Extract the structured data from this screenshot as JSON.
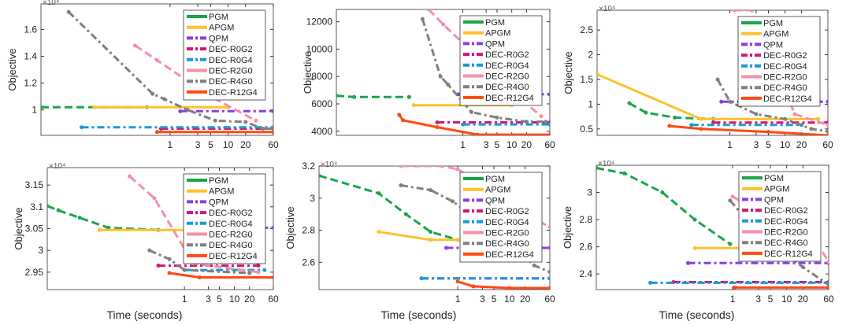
{
  "chart_data": {
    "type": "line",
    "x_scale": "log",
    "grid": false,
    "legend_placement": "top-right",
    "legend": [
      "PGM",
      "APGM",
      "QPM",
      "DEC-R0G2",
      "DEC-R0G4",
      "DEC-R2G0",
      "DEC-R4G0",
      "DEC-R12G4"
    ],
    "colors": {
      "PGM": "#1aa64a",
      "APGM": "#fdc12c",
      "QPM": "#8a3ee0",
      "DEC-R0G2": "#d4147a",
      "DEC-R0G4": "#1a9ad6",
      "DEC-R2G0": "#f78fa7",
      "DEC-R4G0": "#7f7f7f",
      "DEC-R12G4": "#ff4a12"
    },
    "panels": [
      {
        "ylabel": "Objective",
        "xlabel": "",
        "y_exponent": "×10⁴",
        "xlim": [
          0.006,
          60
        ],
        "ylim": [
          8100,
          17900
        ],
        "yticks": [
          10000,
          12000,
          14000,
          16000
        ],
        "ytick_labels": [
          "1",
          "1.2",
          "1.4",
          "1.6"
        ],
        "xticks": [
          1,
          3,
          5,
          10,
          20,
          60
        ],
        "xtick_labels": [
          "1",
          "3",
          "5",
          "10",
          "20",
          "60"
        ],
        "series": [
          {
            "name": "PGM",
            "x": [
              0.006,
              0.4
            ],
            "y": [
              10200,
              10200
            ]
          },
          {
            "name": "APGM",
            "x": [
              0.05,
              10
            ],
            "y": [
              10200,
              10200
            ]
          },
          {
            "name": "QPM",
            "x": [
              1.5,
              60
            ],
            "y": [
              9900,
              9900
            ]
          },
          {
            "name": "DEC-R0G2",
            "x": [
              0.7,
              60
            ],
            "y": [
              8600,
              8600
            ]
          },
          {
            "name": "DEC-R0G4",
            "x": [
              0.03,
              60
            ],
            "y": [
              8700,
              8700
            ]
          },
          {
            "name": "DEC-R2G0",
            "x": [
              0.25,
              0.6,
              5,
              30
            ],
            "y": [
              14800,
              13700,
              11000,
              9200
            ]
          },
          {
            "name": "DEC-R4G0",
            "x": [
              0.018,
              0.5,
              0.8,
              2,
              6,
              20,
              40,
              60
            ],
            "y": [
              17300,
              11200,
              10800,
              10000,
              9200,
              9100,
              8600,
              8600
            ]
          },
          {
            "name": "DEC-R12G4",
            "x": [
              0.6,
              60
            ],
            "y": [
              8350,
              8350
            ]
          }
        ]
      },
      {
        "ylabel": "Objective",
        "xlabel": "",
        "y_exponent": "",
        "xlim": [
          0.0026,
          60
        ],
        "ylim": [
          3700,
          12900
        ],
        "yticks": [
          4000,
          6000,
          8000,
          10000,
          12000
        ],
        "ytick_labels": [
          "4000",
          "6000",
          "8000",
          "10000",
          "12000"
        ],
        "xticks": [
          1,
          3,
          5,
          10,
          20,
          60
        ],
        "xtick_labels": [
          "1",
          "3",
          "5",
          "10",
          "20",
          "60"
        ],
        "series": [
          {
            "name": "PGM",
            "x": [
              0.0026,
              0.006,
              0.08
            ],
            "y": [
              6600,
              6500,
              6500
            ]
          },
          {
            "name": "APGM",
            "x": [
              0.1,
              10
            ],
            "y": [
              5900,
              5900
            ]
          },
          {
            "name": "QPM",
            "x": [
              0.8,
              60
            ],
            "y": [
              6700,
              6700
            ]
          },
          {
            "name": "DEC-R0G2",
            "x": [
              0.3,
              60
            ],
            "y": [
              4650,
              4650
            ]
          },
          {
            "name": "DEC-R0G4",
            "x": [
              1,
              60
            ],
            "y": [
              4500,
              4500
            ]
          },
          {
            "name": "DEC-R2G0",
            "x": [
              0.2,
              0.4,
              20,
              40
            ],
            "y": [
              12900,
              11800,
              6000,
              5100
            ]
          },
          {
            "name": "DEC-R4G0",
            "x": [
              0.15,
              0.35,
              0.5,
              1.5,
              5,
              20,
              50
            ],
            "y": [
              12200,
              8000,
              7400,
              5400,
              5000,
              4700,
              4700
            ]
          },
          {
            "name": "DEC-R12G4",
            "x": [
              0.05,
              0.06,
              0.3,
              2,
              60
            ],
            "y": [
              5200,
              4800,
              4300,
              3750,
              3750
            ]
          }
        ]
      },
      {
        "ylabel": "Objective",
        "xlabel": "",
        "y_exponent": "×10⁴",
        "xlim": [
          0.0039,
          60
        ],
        "ylim": [
          3700,
          29000
        ],
        "yticks": [
          5000,
          10000,
          15000,
          20000,
          25000
        ],
        "ytick_labels": [
          "0.5",
          "1",
          "1.5",
          "2",
          "2.5"
        ],
        "xticks": [
          1,
          3,
          5,
          10,
          20,
          60
        ],
        "xtick_labels": [
          "1",
          "3",
          "5",
          "10",
          "20",
          "60"
        ],
        "series": [
          {
            "name": "PGM",
            "x": [
              0.015,
              0.03,
              0.1,
              0.5
            ],
            "y": [
              10200,
              8300,
              7300,
              7000
            ]
          },
          {
            "name": "APGM",
            "x": [
              0.004,
              0.3,
              40
            ],
            "y": [
              16000,
              7000,
              7000
            ]
          },
          {
            "name": "QPM",
            "x": [
              0.7,
              60
            ],
            "y": [
              10500,
              10500
            ]
          },
          {
            "name": "DEC-R0G2",
            "x": [
              0.5,
              60
            ],
            "y": [
              6300,
              6300
            ]
          },
          {
            "name": "DEC-R0G4",
            "x": [
              0.2,
              20
            ],
            "y": [
              5800,
              5800
            ]
          },
          {
            "name": "DEC-R2G0",
            "x": [
              1.2,
              2.5,
              15,
              60
            ],
            "y": [
              29000,
              29000,
              8000,
              5800
            ]
          },
          {
            "name": "DEC-R4G0",
            "x": [
              0.6,
              1,
              3,
              10,
              30,
              60
            ],
            "y": [
              15000,
              10500,
              8000,
              7000,
              5000,
              4500
            ]
          },
          {
            "name": "DEC-R12G4",
            "x": [
              0.08,
              0.3,
              5,
              60
            ],
            "y": [
              5600,
              5000,
              4400,
              3700
            ]
          }
        ]
      },
      {
        "ylabel": "Objective",
        "xlabel": "Time (seconds)",
        "y_exponent": "×10⁴",
        "xlim": [
          0.0018,
          60
        ],
        "ylim": [
          29100,
          31900
        ],
        "yticks": [
          29500,
          30000,
          30500,
          31000,
          31500
        ],
        "ytick_labels": [
          "2.95",
          "3",
          "3.05",
          "3.1",
          "3.15"
        ],
        "xticks": [
          1,
          3,
          5,
          10,
          20,
          60
        ],
        "xtick_labels": [
          "1",
          "3",
          "5",
          "10",
          "20",
          "60"
        ],
        "series": [
          {
            "name": "PGM",
            "x": [
              0.0018,
              0.003,
              0.008,
              0.03,
              0.3
            ],
            "y": [
              31020,
              30920,
              30750,
              30520,
              30470
            ]
          },
          {
            "name": "APGM",
            "x": [
              0.02,
              2
            ],
            "y": [
              30470,
              30470
            ]
          },
          {
            "name": "QPM",
            "x": [
              3,
              60
            ],
            "y": [
              30520,
              30520
            ]
          },
          {
            "name": "DEC-R0G2",
            "x": [
              0.3,
              30
            ],
            "y": [
              29650,
              29650
            ]
          },
          {
            "name": "DEC-R0G4",
            "x": [
              1,
              40
            ],
            "y": [
              29550,
              29550
            ]
          },
          {
            "name": "DEC-R2G0",
            "x": [
              0.08,
              0.25,
              1.5,
              30
            ],
            "y": [
              31700,
              31200,
              29700,
              29500
            ]
          },
          {
            "name": "DEC-R4G0",
            "x": [
              0.2,
              0.5,
              1,
              20
            ],
            "y": [
              30000,
              29800,
              29550,
              29480
            ]
          },
          {
            "name": "DEC-R12G4",
            "x": [
              0.5,
              2,
              60
            ],
            "y": [
              29480,
              29380,
              29380
            ]
          }
        ]
      },
      {
        "ylabel": "Objective",
        "xlabel": "Time (seconds)",
        "y_exponent": "×10⁴",
        "xlim": [
          0.0021,
          60
        ],
        "ylim": [
          24300,
          32000
        ],
        "yticks": [
          26000,
          28000,
          30000,
          32000
        ],
        "ytick_labels": [
          "2.6",
          "2.8",
          "3",
          "3.2"
        ],
        "xticks": [
          1,
          3,
          5,
          10,
          20,
          60
        ],
        "xtick_labels": [
          "1",
          "3",
          "5",
          "10",
          "20",
          "60"
        ],
        "series": [
          {
            "name": "PGM",
            "x": [
              0.0021,
              0.03,
              0.1,
              0.3,
              1
            ],
            "y": [
              31400,
              30300,
              29000,
              27900,
              27400
            ]
          },
          {
            "name": "APGM",
            "x": [
              0.03,
              0.3,
              1
            ],
            "y": [
              27900,
              27400,
              27400
            ]
          },
          {
            "name": "QPM",
            "x": [
              0.6,
              60
            ],
            "y": [
              26900,
              26900
            ]
          },
          {
            "name": "DEC-R0G2",
            "x": [
              0.2,
              60
            ],
            "y": [
              25000,
              25000
            ]
          },
          {
            "name": "DEC-R0G4",
            "x": [
              0.2,
              60
            ],
            "y": [
              25000,
              25000
            ]
          },
          {
            "name": "DEC-R2G0",
            "x": [
              0.08,
              0.5,
              1,
              40,
              60
            ],
            "y": [
              32000,
              32000,
              31800,
              28500,
              28200
            ]
          },
          {
            "name": "DEC-R4G0",
            "x": [
              0.08,
              0.3,
              0.8,
              10,
              30,
              60
            ],
            "y": [
              30800,
              30500,
              29800,
              27200,
              25800,
              25400
            ]
          },
          {
            "name": "DEC-R12G4",
            "x": [
              1,
              2,
              10,
              60
            ],
            "y": [
              24800,
              24500,
              24400,
              24400
            ]
          }
        ]
      },
      {
        "ylabel": "Objective",
        "xlabel": "Time (seconds)",
        "y_exponent": "×10⁴",
        "xlim": [
          0.003,
          60
        ],
        "ylim": [
          22850,
          32000
        ],
        "yticks": [
          24000,
          26000,
          28000,
          30000
        ],
        "ytick_labels": [
          "2.4",
          "2.6",
          "2.8",
          "3"
        ],
        "xticks": [
          1,
          3,
          5,
          10,
          20,
          60
        ],
        "xtick_labels": [
          "1",
          "3",
          "5",
          "10",
          "20",
          "60"
        ],
        "series": [
          {
            "name": "PGM",
            "x": [
              0.003,
              0.01,
              0.05,
              0.2,
              0.9
            ],
            "y": [
              31800,
              31400,
              30000,
              28000,
              26200
            ]
          },
          {
            "name": "APGM",
            "x": [
              0.2,
              2
            ],
            "y": [
              25900,
              25900
            ]
          },
          {
            "name": "QPM",
            "x": [
              0.15,
              60
            ],
            "y": [
              24800,
              24800
            ]
          },
          {
            "name": "DEC-R0G2",
            "x": [
              0.08,
              60
            ],
            "y": [
              23400,
              23400
            ]
          },
          {
            "name": "DEC-R0G4",
            "x": [
              0.03,
              60
            ],
            "y": [
              23350,
              23350
            ]
          },
          {
            "name": "DEC-R2G0",
            "x": [
              1,
              40,
              60
            ],
            "y": [
              29700,
              26000,
              24900
            ]
          },
          {
            "name": "DEC-R4G0",
            "x": [
              0.9,
              3,
              20,
              60
            ],
            "y": [
              29400,
              27000,
              24500,
              23200
            ]
          },
          {
            "name": "DEC-R12G4",
            "x": [
              1.1,
              60
            ],
            "y": [
              23000,
              23000
            ]
          }
        ]
      }
    ]
  }
}
